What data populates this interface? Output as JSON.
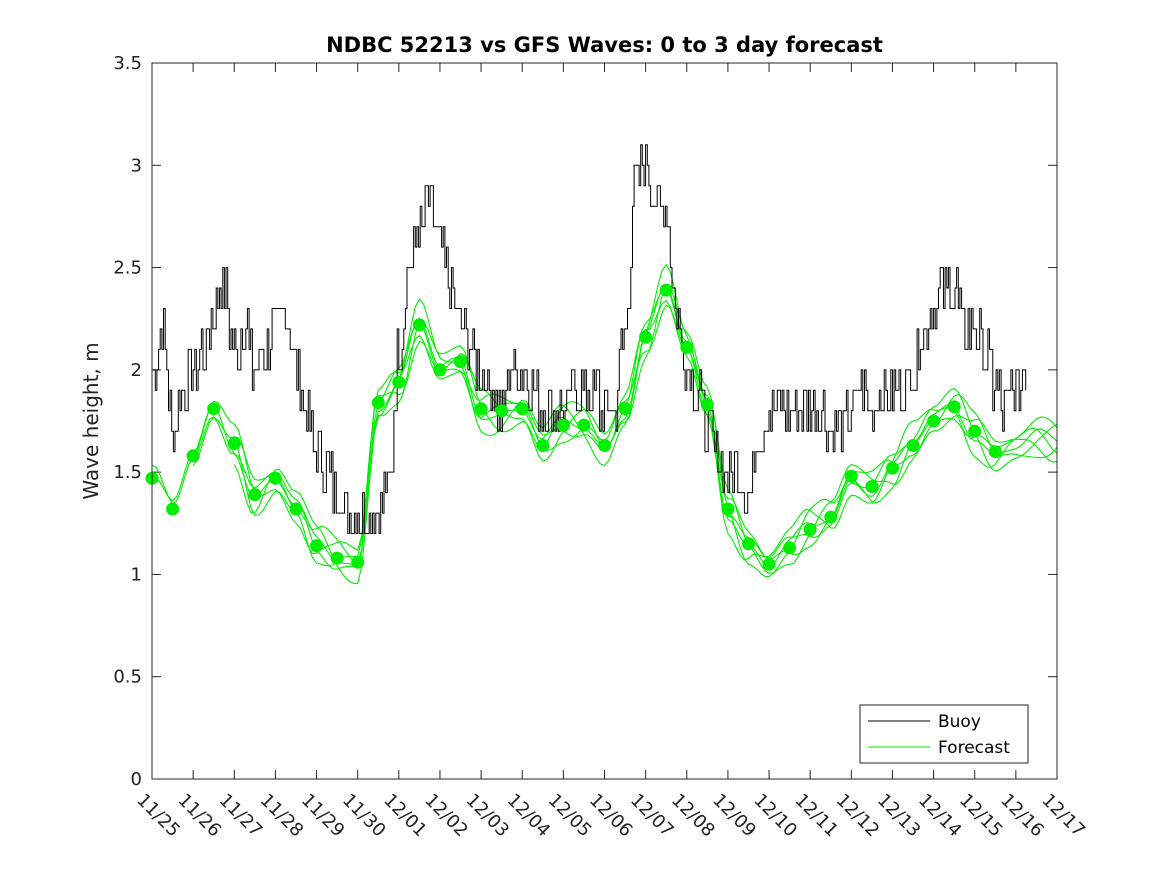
{
  "chart_data": {
    "type": "line",
    "title": "NDBC 52213 vs GFS Waves: 0 to 3 day forecast",
    "xlabel": "",
    "ylabel": "Wave height, m",
    "ylim": [
      0,
      3.5
    ],
    "yticks": [
      0,
      0.5,
      1,
      1.5,
      2,
      2.5,
      3,
      3.5
    ],
    "ytick_labels": [
      "0",
      "0.5",
      "1",
      "1.5",
      "2",
      "2.5",
      "3",
      "3.5"
    ],
    "xlim_days": [
      0,
      22
    ],
    "xtick_labels": [
      "11/25",
      "11/26",
      "11/27",
      "11/28",
      "11/29",
      "11/30",
      "12/01",
      "12/02",
      "12/03",
      "12/04",
      "12/05",
      "12/06",
      "12/07",
      "12/08",
      "12/09",
      "12/10",
      "12/11",
      "12/12",
      "12/13",
      "12/14",
      "12/15",
      "12/16",
      "12/17"
    ],
    "legend": {
      "position": "bottom-right",
      "entries": [
        "Buoy",
        "Forecast"
      ]
    },
    "colors": {
      "buoy": "#000000",
      "forecast": "#00ee00"
    },
    "series": [
      {
        "name": "Buoy",
        "x": [
          0,
          0.25,
          0.5,
          0.75,
          1,
          1.25,
          1.5,
          1.75,
          2,
          2.25,
          2.5,
          2.75,
          3,
          3.25,
          3.5,
          3.75,
          4,
          4.25,
          4.5,
          4.75,
          5,
          5.25,
          5.5,
          5.75,
          6,
          6.25,
          6.5,
          6.75,
          7,
          7.25,
          7.5,
          7.75,
          8,
          8.25,
          8.5,
          8.75,
          9,
          9.25,
          9.5,
          9.75,
          10,
          10.25,
          10.5,
          10.75,
          11,
          11.25,
          11.5,
          11.75,
          12,
          12.25,
          12.5,
          12.75,
          13,
          13.25,
          13.5,
          13.75,
          14,
          14.25,
          14.5,
          14.75,
          15,
          15.25,
          15.5,
          15.75,
          16,
          16.25,
          16.5,
          16.75,
          17,
          17.25,
          17.5,
          17.75,
          18,
          18.25,
          18.5,
          18.75,
          19,
          19.25,
          19.5,
          19.75,
          20,
          20.25,
          20.5,
          20.75,
          21,
          21.25
        ],
        "values": [
          2.0,
          2.2,
          1.7,
          1.9,
          2.0,
          2.1,
          2.3,
          2.4,
          2.1,
          2.2,
          2.0,
          2.1,
          2.2,
          2.3,
          2.0,
          1.8,
          1.6,
          1.5,
          1.4,
          1.3,
          1.3,
          1.3,
          1.3,
          1.4,
          2.1,
          2.5,
          2.7,
          2.8,
          2.6,
          2.4,
          2.2,
          2.1,
          2.0,
          1.9,
          1.8,
          2.0,
          2.0,
          1.9,
          1.8,
          1.8,
          1.8,
          1.9,
          1.9,
          1.9,
          1.8,
          1.8,
          2.2,
          2.9,
          3.0,
          2.8,
          2.8,
          2.3,
          2.0,
          1.9,
          1.7,
          1.6,
          1.5,
          1.5,
          1.4,
          1.7,
          1.8,
          1.8,
          1.8,
          1.8,
          1.8,
          1.8,
          1.7,
          1.7,
          1.8,
          1.9,
          1.8,
          1.9,
          1.9,
          1.9,
          2.0,
          2.2,
          2.3,
          2.4,
          2.4,
          2.2,
          2.2,
          2.1,
          1.9,
          1.8,
          1.9,
          2.0
        ]
      },
      {
        "name": "Forecast",
        "x": [
          0,
          0.5,
          1,
          1.5,
          2,
          2.5,
          3,
          3.5,
          4,
          4.5,
          5,
          5.5,
          6,
          6.5,
          7,
          7.5,
          8,
          8.5,
          9,
          9.5,
          10,
          10.5,
          11,
          11.5,
          12,
          12.5,
          13,
          13.5,
          14,
          14.5,
          15,
          15.5,
          16,
          16.5,
          17,
          17.5,
          18,
          18.5,
          19,
          19.5,
          20,
          20.5,
          21,
          21.5,
          22
        ],
        "values": [
          1.47,
          1.32,
          1.58,
          1.81,
          1.64,
          1.39,
          1.47,
          1.32,
          1.14,
          1.08,
          1.06,
          1.84,
          1.94,
          2.22,
          2.0,
          2.04,
          1.81,
          1.8,
          1.81,
          1.63,
          1.73,
          1.73,
          1.63,
          1.81,
          2.16,
          2.39,
          2.11,
          1.83,
          1.32,
          1.15,
          1.05,
          1.13,
          1.22,
          1.28,
          1.48,
          1.43,
          1.52,
          1.63,
          1.75,
          1.82,
          1.7,
          1.6,
          1.63,
          1.66,
          1.63
        ],
        "marker_values": [
          1.47,
          1.32,
          1.58,
          1.81,
          1.64,
          1.39,
          1.47,
          1.32,
          1.14,
          1.08,
          1.06,
          1.84,
          1.94,
          2.22,
          2.0,
          2.04,
          1.81,
          1.8,
          1.81,
          1.63,
          1.73,
          1.73,
          1.63,
          1.81,
          2.16,
          2.39,
          2.11,
          1.83,
          1.32,
          1.15,
          1.05,
          1.13,
          1.22,
          1.28,
          1.48,
          1.43,
          1.52,
          1.63,
          1.75,
          1.82,
          1.7,
          1.6
        ]
      }
    ]
  }
}
